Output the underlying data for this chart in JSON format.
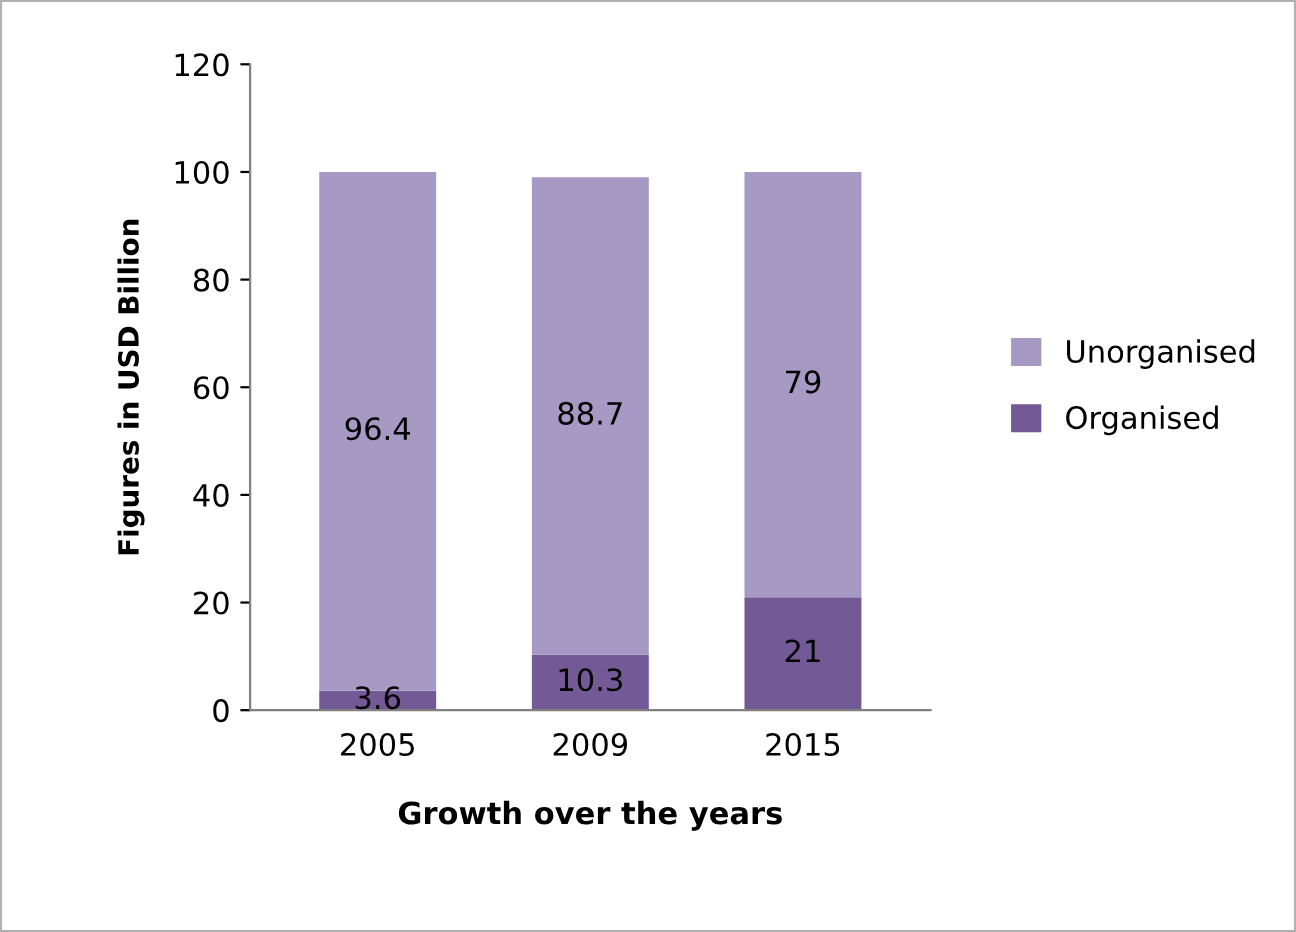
{
  "chart_data": {
    "type": "bar",
    "stacked": true,
    "xlabel": "Growth over the years",
    "ylabel": "Figures in USD Billion",
    "categories": [
      "2005",
      "2009",
      "2015"
    ],
    "series": [
      {
        "name": "Organised",
        "color": "#735a96",
        "values": [
          3.6,
          10.3,
          21
        ]
      },
      {
        "name": "Unorganised",
        "color": "#a699c3",
        "values": [
          96.4,
          88.7,
          79
        ]
      }
    ],
    "ylim": [
      0,
      120
    ],
    "yticks": [
      0,
      20,
      40,
      60,
      80,
      100,
      120
    ],
    "grid": false,
    "legend": "right",
    "data_labels": true
  }
}
